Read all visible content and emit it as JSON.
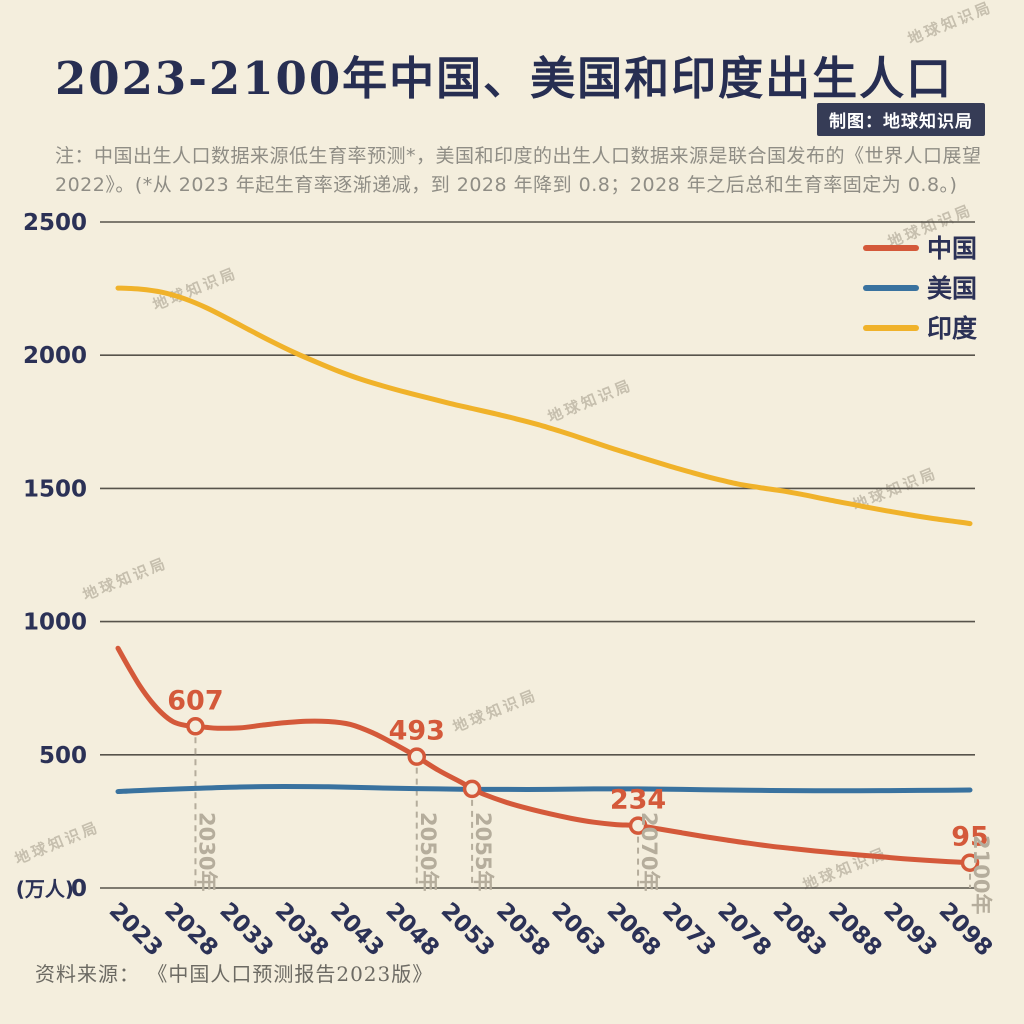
{
  "header": {
    "title": "2023-2100年中国、美国和印度出生人口",
    "badge": "制图：地球知识局",
    "note": "注：中国出生人口数据来源低生育率预测*，美国和印度的出生人口数据来源是联合国发布的《世界人口展望2022》。(*从 2023 年起生育率逐渐递减，到 2028 年降到 0.8；2028 年之后总和生育率固定为 0.8。)"
  },
  "footer": {
    "source": "资料来源： 《中国人口预测报告2023版》"
  },
  "watermark": {
    "text": "地球知识局"
  },
  "colors": {
    "background": "#f4eedd",
    "title": "#272e52",
    "axis_text": "#2b3156",
    "grid": "#57534b",
    "note": "#8f8d85",
    "annotation": "#b5ad9c",
    "badge_bg": "#363c56",
    "badge_text": "#ffffff",
    "source": "#6c6a63",
    "watermark": "rgba(124,116,97,0.38)"
  },
  "chart_data": {
    "type": "line",
    "title": "2023-2100年中国、美国和印度出生人口",
    "unit_label": "(万人)",
    "xlim": [
      2023,
      2100
    ],
    "ylim": [
      0,
      2500
    ],
    "y_ticks": [
      0,
      500,
      1000,
      1500,
      2000,
      2500
    ],
    "x_ticks": [
      2023,
      2028,
      2033,
      2038,
      2043,
      2048,
      2053,
      2058,
      2063,
      2068,
      2073,
      2078,
      2083,
      2088,
      2093,
      2098
    ],
    "legend_position": "top-right",
    "grid": "horizontal",
    "series": [
      {
        "name": "中国",
        "color": "#d4593a",
        "points": [
          [
            2023,
            900
          ],
          [
            2024,
            826
          ],
          [
            2025,
            757
          ],
          [
            2026,
            700
          ],
          [
            2027,
            655
          ],
          [
            2028,
            624
          ],
          [
            2029,
            611
          ],
          [
            2030,
            607
          ],
          [
            2031,
            603
          ],
          [
            2032,
            600
          ],
          [
            2034,
            601
          ],
          [
            2036,
            611
          ],
          [
            2038,
            620
          ],
          [
            2040,
            626
          ],
          [
            2042,
            625
          ],
          [
            2044,
            614
          ],
          [
            2046,
            583
          ],
          [
            2048,
            540
          ],
          [
            2050,
            493
          ],
          [
            2052,
            441
          ],
          [
            2054,
            397
          ],
          [
            2055,
            373
          ],
          [
            2056,
            353
          ],
          [
            2058,
            323
          ],
          [
            2060,
            299
          ],
          [
            2062,
            279
          ],
          [
            2064,
            261
          ],
          [
            2066,
            247
          ],
          [
            2068,
            238
          ],
          [
            2070,
            234
          ],
          [
            2072,
            221
          ],
          [
            2074,
            207
          ],
          [
            2076,
            193
          ],
          [
            2078,
            180
          ],
          [
            2080,
            168
          ],
          [
            2082,
            157
          ],
          [
            2084,
            148
          ],
          [
            2086,
            139
          ],
          [
            2088,
            131
          ],
          [
            2090,
            124
          ],
          [
            2092,
            117
          ],
          [
            2094,
            110
          ],
          [
            2096,
            104
          ],
          [
            2098,
            99
          ],
          [
            2100,
            95
          ]
        ]
      },
      {
        "name": "美国",
        "color": "#39729f",
        "points": [
          [
            2023,
            362
          ],
          [
            2026,
            368
          ],
          [
            2030,
            374
          ],
          [
            2034,
            379
          ],
          [
            2038,
            381
          ],
          [
            2042,
            380
          ],
          [
            2046,
            376
          ],
          [
            2050,
            373
          ],
          [
            2054,
            371
          ],
          [
            2058,
            370
          ],
          [
            2062,
            370
          ],
          [
            2066,
            372
          ],
          [
            2070,
            372
          ],
          [
            2074,
            370
          ],
          [
            2078,
            368
          ],
          [
            2082,
            366
          ],
          [
            2086,
            365
          ],
          [
            2090,
            365
          ],
          [
            2094,
            366
          ],
          [
            2098,
            367
          ],
          [
            2100,
            368
          ]
        ]
      },
      {
        "name": "印度",
        "color": "#f0b22a",
        "points": [
          [
            2023,
            2252
          ],
          [
            2025,
            2248
          ],
          [
            2027,
            2236
          ],
          [
            2029,
            2212
          ],
          [
            2031,
            2178
          ],
          [
            2033,
            2136
          ],
          [
            2035,
            2092
          ],
          [
            2037,
            2049
          ],
          [
            2039,
            2009
          ],
          [
            2041,
            1973
          ],
          [
            2043,
            1939
          ],
          [
            2045,
            1909
          ],
          [
            2047,
            1884
          ],
          [
            2049,
            1861
          ],
          [
            2051,
            1840
          ],
          [
            2053,
            1819
          ],
          [
            2055,
            1800
          ],
          [
            2057,
            1781
          ],
          [
            2059,
            1761
          ],
          [
            2061,
            1739
          ],
          [
            2063,
            1714
          ],
          [
            2065,
            1687
          ],
          [
            2067,
            1659
          ],
          [
            2069,
            1633
          ],
          [
            2071,
            1607
          ],
          [
            2073,
            1582
          ],
          [
            2075,
            1558
          ],
          [
            2077,
            1536
          ],
          [
            2079,
            1517
          ],
          [
            2081,
            1503
          ],
          [
            2083,
            1491
          ],
          [
            2085,
            1476
          ],
          [
            2087,
            1459
          ],
          [
            2089,
            1443
          ],
          [
            2091,
            1427
          ],
          [
            2093,
            1412
          ],
          [
            2095,
            1398
          ],
          [
            2097,
            1385
          ],
          [
            2099,
            1374
          ],
          [
            2100,
            1368
          ]
        ]
      }
    ],
    "annotations": [
      {
        "year": 2030,
        "value": 607,
        "label": "607",
        "axis_label": "2030年"
      },
      {
        "year": 2050,
        "value": 493,
        "label": "493",
        "axis_label": "2050年"
      },
      {
        "year": 2055,
        "value": 372,
        "label": "",
        "axis_label": "2055年"
      },
      {
        "year": 2070,
        "value": 234,
        "label": "234",
        "axis_label": "2070年"
      },
      {
        "year": 2100,
        "value": 95,
        "label": "95",
        "axis_label": "2100年"
      }
    ]
  }
}
